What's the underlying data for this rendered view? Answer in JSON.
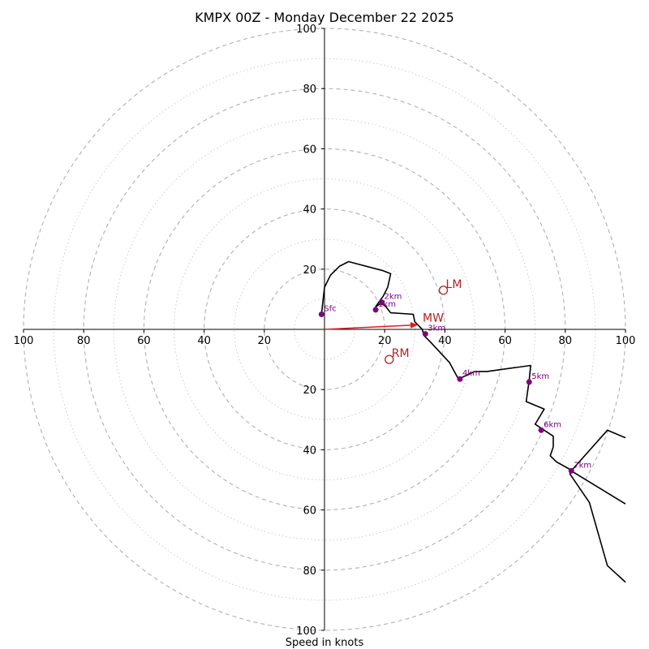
{
  "chart_data": {
    "type": "hodograph",
    "title": "KMPX 00Z - Monday December 22 2025",
    "xlabel": "Speed in knots",
    "max_speed": 100,
    "ring_step": 10,
    "labeled_rings": [
      20,
      40,
      60,
      80,
      100
    ],
    "axis_tick_labels": [
      {
        "text": "100",
        "value": -100
      },
      {
        "text": "80",
        "value": -80
      },
      {
        "text": "60",
        "value": -60
      },
      {
        "text": "40",
        "value": -40
      },
      {
        "text": "20",
        "value": -20
      },
      {
        "text": "20",
        "value": 20
      },
      {
        "text": "40",
        "value": 40
      },
      {
        "text": "60",
        "value": 60
      },
      {
        "text": "80",
        "value": 80
      },
      {
        "text": "100",
        "value": 100
      }
    ],
    "vertical_tick_labels": [
      {
        "text": "100",
        "value": 100
      },
      {
        "text": "80",
        "value": 80
      },
      {
        "text": "60",
        "value": 60
      },
      {
        "text": "40",
        "value": 40
      },
      {
        "text": "20",
        "value": 20
      },
      {
        "text": "20",
        "value": -20
      },
      {
        "text": "40",
        "value": -40
      },
      {
        "text": "60",
        "value": -60
      },
      {
        "text": "80",
        "value": -80
      },
      {
        "text": "100",
        "value": -100
      }
    ],
    "hodograph_line": [
      [
        -1,
        5
      ],
      [
        0,
        14
      ],
      [
        2,
        18
      ],
      [
        5,
        21
      ],
      [
        8,
        22.5
      ],
      [
        19.5,
        19.5
      ],
      [
        22,
        18.5
      ],
      [
        21,
        14
      ],
      [
        19.5,
        11
      ],
      [
        18,
        9
      ],
      [
        17,
        7.5
      ],
      [
        18.5,
        8.5
      ],
      [
        20,
        8
      ],
      [
        22,
        5.5
      ],
      [
        29.5,
        5
      ],
      [
        30,
        2.5
      ],
      [
        32.5,
        0
      ],
      [
        33,
        -2
      ],
      [
        35,
        -4
      ],
      [
        41.5,
        -11
      ],
      [
        44.5,
        -16.5
      ],
      [
        50,
        -14
      ],
      [
        52,
        -14
      ],
      [
        54,
        -14
      ],
      [
        68.5,
        -12
      ],
      [
        68,
        -17
      ],
      [
        67,
        -24
      ],
      [
        73,
        -26.5
      ],
      [
        70,
        -31.5
      ],
      [
        76,
        -35.5
      ],
      [
        76,
        -39
      ],
      [
        75,
        -42
      ],
      [
        77,
        -44
      ],
      [
        81.5,
        -46.5
      ],
      [
        82,
        -47
      ],
      [
        81.5,
        -48
      ],
      [
        88,
        -57.5
      ],
      [
        94,
        -78.5
      ],
      [
        100,
        -84
      ]
    ],
    "hodograph_branches": [
      [
        [
          82,
          -47
        ],
        [
          94,
          -33.5
        ],
        [
          100,
          -36
        ]
      ],
      [
        [
          82,
          -47
        ],
        [
          100,
          -58
        ]
      ]
    ],
    "height_markers": [
      {
        "label": "Sfc",
        "u": -1,
        "v": 5
      },
      {
        "label": "1km",
        "u": 17,
        "v": 6.5
      },
      {
        "label": "2km",
        "u": 19,
        "v": 9
      },
      {
        "label": "3km",
        "u": 33.5,
        "v": -1.5
      },
      {
        "label": "4km",
        "u": 45,
        "v": -16.5
      },
      {
        "label": "5km",
        "u": 68,
        "v": -17.5
      },
      {
        "label": "6km",
        "u": 72,
        "v": -33.5
      },
      {
        "label": "7km",
        "u": 82,
        "v": -47
      }
    ],
    "storm_motion": {
      "mean_wind": {
        "label": "MW",
        "u": 31,
        "v": 1.5
      },
      "left_mover": {
        "label": "LM",
        "u": 39.5,
        "v": 13
      },
      "right_mover": {
        "label": "RM",
        "u": 21.5,
        "v": -10
      }
    },
    "colors": {
      "hodograph": "#000000",
      "markers": "#800080",
      "storm_motion": "#b22222",
      "mean_wind_arrow": "#e41a1c",
      "ring_major": "#b0b0b0",
      "ring_minor": "#c8c8c8"
    }
  }
}
